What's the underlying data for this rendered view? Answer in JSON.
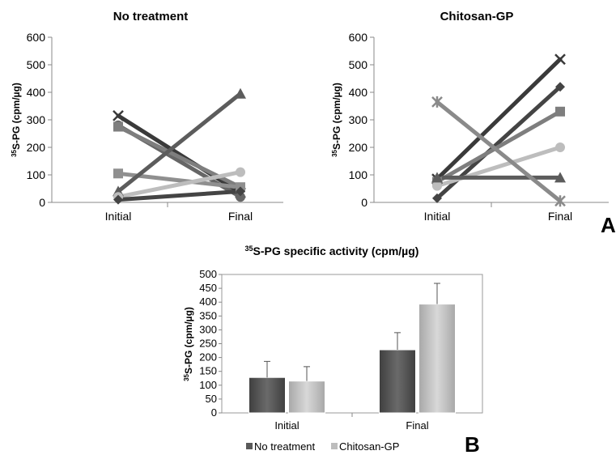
{
  "chart_data": [
    {
      "id": "A1",
      "type": "line",
      "title": "No treatment",
      "ylabel": "35S-PG (cpm/µg)",
      "ylabel_parts": {
        "sup": "35",
        "rest": "S-PG (cpm/µg)"
      },
      "categories": [
        "Initial",
        "Final"
      ],
      "ylim": [
        0,
        600
      ],
      "yticks": [
        0,
        100,
        200,
        300,
        400,
        500,
        600
      ],
      "series": [
        {
          "values": [
            315,
            35
          ],
          "color": "#3a3a3a",
          "marker": "x"
        },
        {
          "values": [
            280,
            20
          ],
          "color": "#666666",
          "marker": "circle"
        },
        {
          "values": [
            275,
            55
          ],
          "color": "#7e7e7e",
          "marker": "square"
        },
        {
          "values": [
            105,
            55
          ],
          "color": "#8f8f8f",
          "marker": "square"
        },
        {
          "values": [
            40,
            395
          ],
          "color": "#5c5c5c",
          "marker": "triangle"
        },
        {
          "values": [
            20,
            110
          ],
          "color": "#bdbdbd",
          "marker": "circle"
        },
        {
          "values": [
            10,
            40
          ],
          "color": "#444444",
          "marker": "diamond"
        }
      ]
    },
    {
      "id": "A2",
      "type": "line",
      "title": "Chitosan-GP",
      "ylabel": "35S-PG (cpm/µg)",
      "ylabel_parts": {
        "sup": "35",
        "rest": "S-PG (cpm/µg)"
      },
      "categories": [
        "Initial",
        "Final"
      ],
      "ylim": [
        0,
        600
      ],
      "yticks": [
        0,
        100,
        200,
        300,
        400,
        500,
        600
      ],
      "series": [
        {
          "values": [
            85,
            520
          ],
          "color": "#3a3a3a",
          "marker": "x"
        },
        {
          "values": [
            15,
            420
          ],
          "color": "#444444",
          "marker": "diamond"
        },
        {
          "values": [
            75,
            330
          ],
          "color": "#7e7e7e",
          "marker": "square"
        },
        {
          "values": [
            60,
            200
          ],
          "color": "#bdbdbd",
          "marker": "circle"
        },
        {
          "values": [
            90,
            90
          ],
          "color": "#5c5c5c",
          "marker": "triangle"
        },
        {
          "values": [
            365,
            5
          ],
          "color": "#8a8a8a",
          "marker": "star"
        }
      ]
    },
    {
      "id": "B",
      "type": "bar",
      "title": "35S-PG specific activity (cpm/µg)",
      "title_parts": {
        "sup": "35",
        "rest": "S-PG specific activity (cpm/µg)"
      },
      "ylabel": "35S-PG (cpm/µg)",
      "ylabel_parts": {
        "sup": "35",
        "rest": "S-PG (cpm/µg)"
      },
      "categories": [
        "Initial",
        "Final"
      ],
      "ylim": [
        0,
        500
      ],
      "yticks": [
        0,
        50,
        100,
        150,
        200,
        250,
        300,
        350,
        400,
        450,
        500
      ],
      "legend_position": "bottom",
      "series": [
        {
          "name": "No treatment",
          "values": [
            128,
            228
          ],
          "errors": [
            58,
            62
          ],
          "color": "#5a5a5a"
        },
        {
          "name": "Chitosan-GP",
          "values": [
            115,
            393
          ],
          "errors": [
            52,
            75
          ],
          "color": "#bdbdbd"
        }
      ]
    }
  ],
  "panel_labels": {
    "a": "A",
    "b": "B"
  }
}
